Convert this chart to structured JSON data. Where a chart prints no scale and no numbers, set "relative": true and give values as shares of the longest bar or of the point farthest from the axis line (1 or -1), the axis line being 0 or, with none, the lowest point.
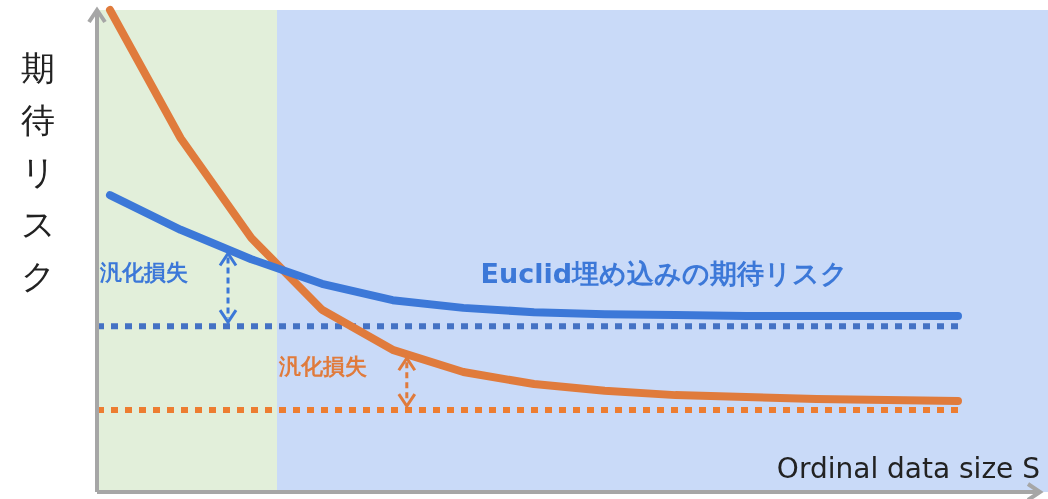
{
  "chart_data": {
    "type": "line",
    "relative": true,
    "ylabel": "期待リスク",
    "xlabel": "Ordinal data size S",
    "line_style": "solid",
    "categories": [
      null,
      null,
      null,
      null,
      null,
      null,
      null,
      null,
      null,
      null,
      null,
      null,
      null
    ],
    "series": [
      {
        "name": "Euclid埋め込みの期待リスク",
        "color": "#3c78d8",
        "values": [
          0.616,
          0.544,
          0.483,
          0.432,
          0.398,
          0.382,
          0.373,
          0.369,
          0.367,
          0.365,
          0.365,
          0.365,
          0.365
        ]
      },
      {
        "color": "#e07b3c",
        "values": [
          1,
          0.734,
          0.527,
          0.378,
          0.295,
          0.249,
          0.224,
          0.21,
          0.201,
          0.197,
          0.193,
          0.191,
          0.189
        ]
      }
    ],
    "ref_lines": [
      {
        "axis": "y",
        "value": 0.344,
        "color": "#4472c4",
        "line_style": "dotted"
      },
      {
        "axis": "y",
        "value": 0.17,
        "color": "#ed7d31",
        "line_style": "dotted"
      }
    ],
    "annotations": [
      "汎化損失",
      "汎化損失"
    ]
  }
}
